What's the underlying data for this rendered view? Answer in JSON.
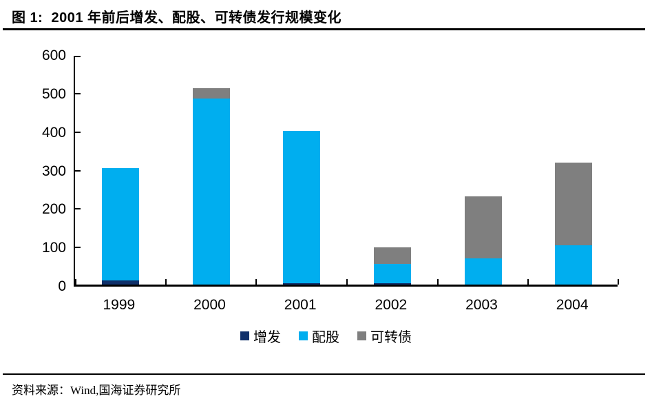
{
  "header": {
    "title": "图 1:  2001 年前后增发、配股、可转债发行规模变化"
  },
  "footer": {
    "source": "资料来源：Wind,国海证券研究所"
  },
  "colors": {
    "zengfa": "#10306a",
    "peigu": "#00aeef",
    "kezhuanzhai": "#7f7f7f",
    "axis": "#000000",
    "text": "#000000",
    "background": "#ffffff"
  },
  "chart_data": {
    "type": "bar",
    "stacked": true,
    "title": "2001 年前后增发、配股、可转债发行规模变化",
    "categories": [
      "1999",
      "2000",
      "2001",
      "2002",
      "2003",
      "2004"
    ],
    "series": [
      {
        "name": "增发",
        "color_key": "zengfa",
        "values": [
          10,
          0,
          4,
          4,
          0,
          0
        ]
      },
      {
        "name": "配股",
        "color_key": "peigu",
        "values": [
          293,
          483,
          396,
          50,
          68,
          103
        ]
      },
      {
        "name": "可转债",
        "color_key": "kezhuanzhai",
        "values": [
          0,
          28,
          0,
          43,
          161,
          214
        ]
      }
    ],
    "totals": [
      303,
      511,
      400,
      97,
      229,
      317
    ],
    "xlabel": "",
    "ylabel": "",
    "ylim": [
      0,
      600
    ],
    "yticks": [
      0,
      100,
      200,
      300,
      400,
      500,
      600
    ],
    "grid": false,
    "legend_position": "bottom"
  }
}
